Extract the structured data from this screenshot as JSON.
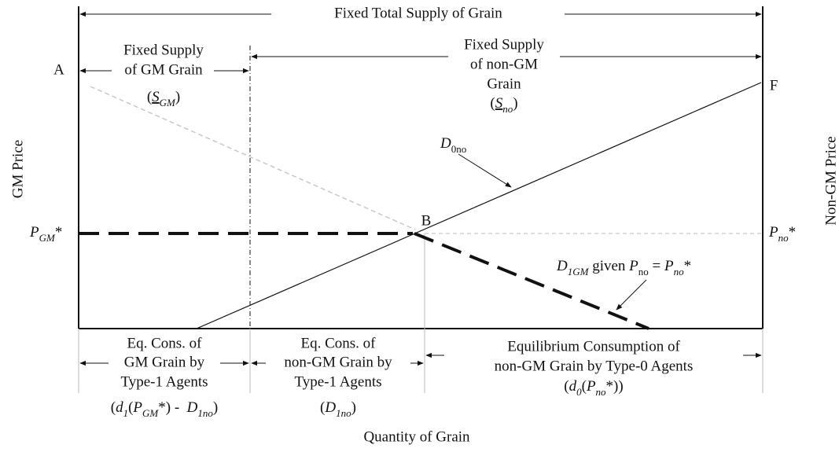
{
  "top_label": "Fixed Total Supply of Grain",
  "axes": {
    "y_left": "GM Price",
    "y_right": "Non-GM Price",
    "x": "Quantity of Grain"
  },
  "points": {
    "a": "A",
    "b": "B",
    "f": "F"
  },
  "gm_supply": {
    "lines": [
      "Fixed Supply",
      "of GM Grain"
    ],
    "parts": [
      "(",
      "S",
      "GM",
      ")"
    ]
  },
  "nongm_supply": {
    "lines": [
      "Fixed Supply",
      "of non-GM",
      "Grain"
    ],
    "parts": [
      "(",
      "S",
      "no",
      ")"
    ]
  },
  "p_gm": {
    "parts": [
      "P",
      "GM",
      "*"
    ]
  },
  "p_no": {
    "parts": [
      "P",
      "no",
      "*"
    ]
  },
  "d0no": {
    "parts": [
      "D",
      "0no"
    ]
  },
  "d1gm": {
    "parts": [
      "D",
      "1GM",
      " given ",
      "P",
      "no",
      " = ",
      "P",
      "no",
      "*"
    ]
  },
  "bottom": [
    {
      "lines": [
        "Eq. Cons. of",
        "GM Grain by",
        "Type-1 Agents"
      ],
      "parts": [
        "(",
        "d",
        "1",
        "(",
        "P",
        "GM",
        "*) -  ",
        "D",
        "1no",
        ")"
      ]
    },
    {
      "lines": [
        "Eq. Cons. of",
        "non-GM Grain by",
        "Type-1 Agents"
      ],
      "parts": [
        "(",
        "D",
        "1no",
        ")"
      ]
    },
    {
      "lines": [
        "Equilibrium Consumption of",
        "non-GM Grain by Type-0 Agents"
      ],
      "parts": [
        "(",
        "d",
        "0",
        "(",
        "P",
        "no",
        "*))"
      ]
    }
  ]
}
